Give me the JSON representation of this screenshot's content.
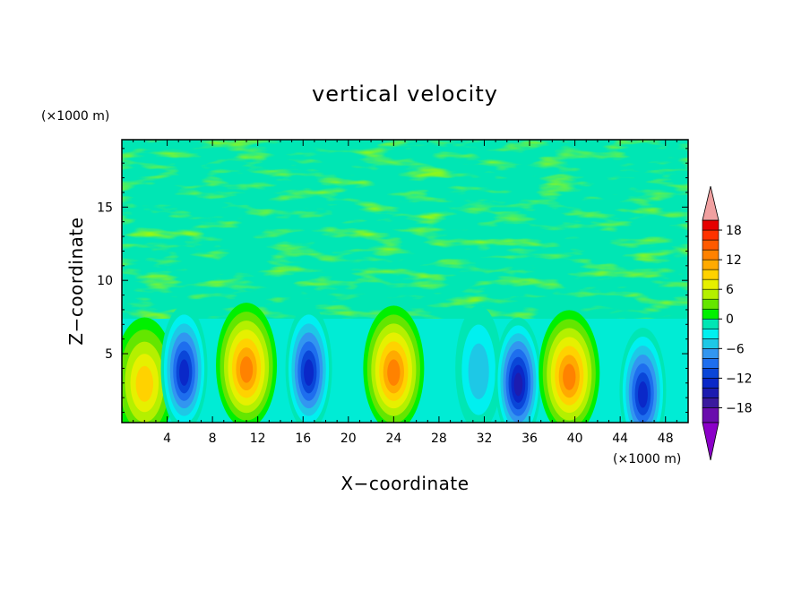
{
  "chart_data": {
    "type": "heatmap",
    "title": "vertical velocity",
    "xlabel": "X−coordinate",
    "ylabel": "Z−coordinate",
    "x_unit": "(×1000 m)",
    "y_unit": "(×1000 m)",
    "xlim": [
      0,
      50
    ],
    "ylim": [
      0.3,
      19.6
    ],
    "x_ticks": [
      "4",
      "8",
      "12",
      "16",
      "20",
      "24",
      "28",
      "32",
      "36",
      "40",
      "44",
      "48"
    ],
    "y_ticks": [
      "5",
      "10",
      "15"
    ],
    "colorbar": {
      "tick_labels": [
        "18",
        "12",
        "6",
        "0",
        "−6",
        "−12",
        "−18"
      ],
      "tick_values": [
        18,
        12,
        6,
        0,
        -6,
        -12,
        -18
      ],
      "levels": [
        -21,
        -18,
        -16,
        -14,
        -12,
        -10,
        -8,
        -6,
        -4,
        -2,
        0,
        2,
        4,
        6,
        8,
        10,
        12,
        14,
        16,
        18,
        20
      ],
      "colors": [
        "#6a0dad",
        "#3a1a9e",
        "#1c1cb0",
        "#0a28c8",
        "#0a46d8",
        "#1e6eee",
        "#3296f0",
        "#1ec8e6",
        "#00f0f0",
        "#00e6b4",
        "#00f000",
        "#64e600",
        "#b4f000",
        "#e6f000",
        "#ffd200",
        "#ffaa00",
        "#ff8200",
        "#ff5a00",
        "#ff3200",
        "#e60000"
      ],
      "extend_low_color": "#8b00c8",
      "extend_high_color": "#f0a0a0"
    },
    "cells": [
      {
        "x": 2.0,
        "z": 3.2,
        "w": 10
      },
      {
        "x": 5.5,
        "z": 4.0,
        "w": -14
      },
      {
        "x": 11.0,
        "z": 4.2,
        "w": 14
      },
      {
        "x": 16.5,
        "z": 4.0,
        "w": -14
      },
      {
        "x": 24.0,
        "z": 4.0,
        "w": 14
      },
      {
        "x": 31.5,
        "z": 4.0,
        "w": -6
      },
      {
        "x": 35.0,
        "z": 3.2,
        "w": -16
      },
      {
        "x": 39.5,
        "z": 3.7,
        "w": 13
      },
      {
        "x": 46.0,
        "z": 2.5,
        "w": -14
      }
    ]
  }
}
